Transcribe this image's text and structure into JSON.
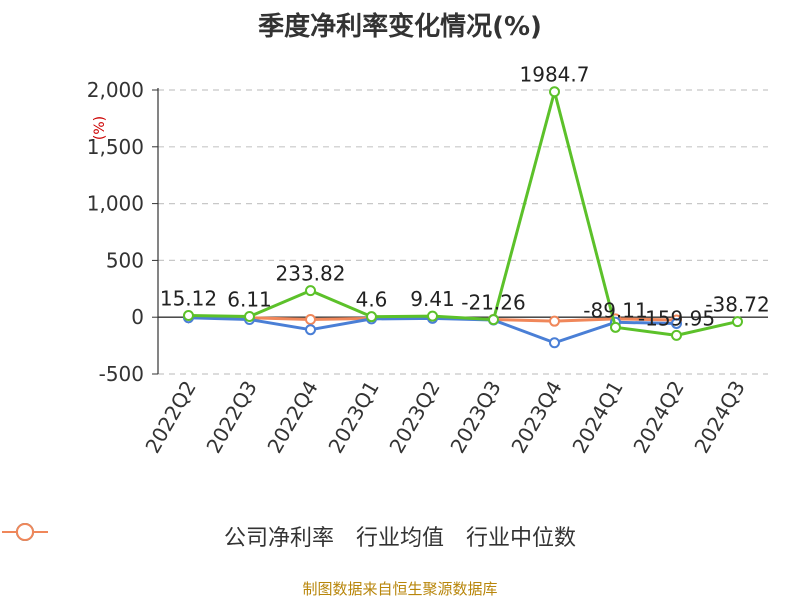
{
  "chart_data": {
    "type": "line",
    "title": "季度净利率变化情况(%)",
    "ylabel": "(%)",
    "ylim": [
      -500,
      2000
    ],
    "yticks": [
      -500,
      0,
      500,
      1000,
      1500,
      2000
    ],
    "ytick_labels": [
      "-500",
      "0",
      "500",
      "1,000",
      "1,500",
      "2,000"
    ],
    "categories": [
      "2022Q2",
      "2022Q3",
      "2022Q4",
      "2023Q1",
      "2023Q2",
      "2023Q3",
      "2023Q4",
      "2024Q1",
      "2024Q2",
      "2024Q3"
    ],
    "grid": true,
    "legend_position": "bottom",
    "series": [
      {
        "name": "公司净利率",
        "color": "#5cc12a",
        "values": [
          15.12,
          6.11,
          233.82,
          4.6,
          9.41,
          -21.26,
          1984.7,
          -89.11,
          -159.95,
          -38.72
        ],
        "labels": [
          "15.12",
          "6.11",
          "233.82",
          "4.6",
          "9.41",
          "-21.26",
          "1984.7",
          "-89.11",
          "-159.95",
          "-38.72"
        ]
      },
      {
        "name": "行业均值",
        "color": "#4a7fd6",
        "values": [
          -5,
          -20,
          -110,
          -15,
          -10,
          -25,
          -225,
          -45,
          -55,
          null
        ]
      },
      {
        "name": "行业中位数",
        "color": "#f0875a",
        "values": [
          5,
          -5,
          -20,
          -10,
          -5,
          -20,
          -35,
          -15,
          -25,
          null
        ]
      }
    ],
    "source": "制图数据来自恒生聚源数据库"
  }
}
